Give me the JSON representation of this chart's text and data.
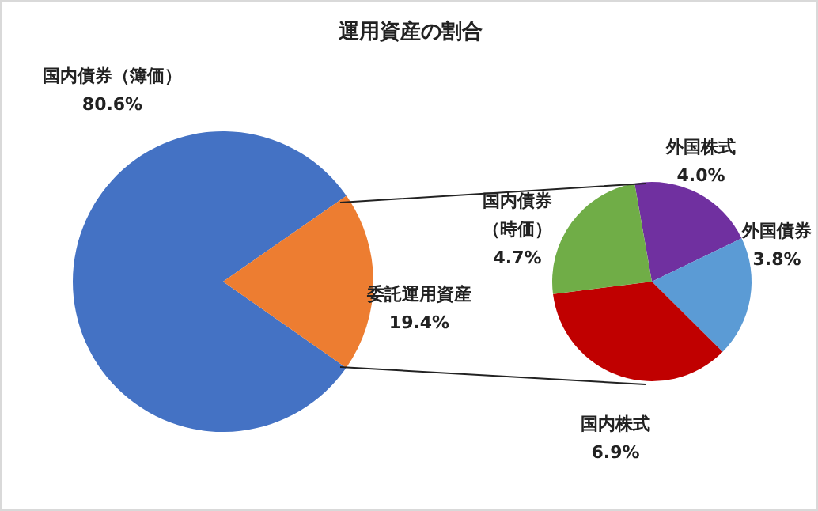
{
  "chart_data": [
    {
      "type": "pie",
      "title": "運用資産の割合",
      "categories": [
        "国内債券（簿価）",
        "委託運用資産"
      ],
      "values": [
        80.6,
        19.4
      ],
      "value_labels": [
        "80.6%",
        "19.4%"
      ],
      "colors": [
        "#4472c4",
        "#ed7d31"
      ]
    },
    {
      "type": "pie",
      "categories": [
        "外国株式",
        "外国債券",
        "国内株式",
        "国内債券（時価）"
      ],
      "values": [
        4.0,
        3.8,
        6.9,
        4.7
      ],
      "value_labels": [
        "4.0%",
        "3.8%",
        "6.9%",
        "4.7%"
      ],
      "colors": [
        "#7030a0",
        "#5b9bd5",
        "#c00000",
        "#70ad47"
      ]
    }
  ]
}
